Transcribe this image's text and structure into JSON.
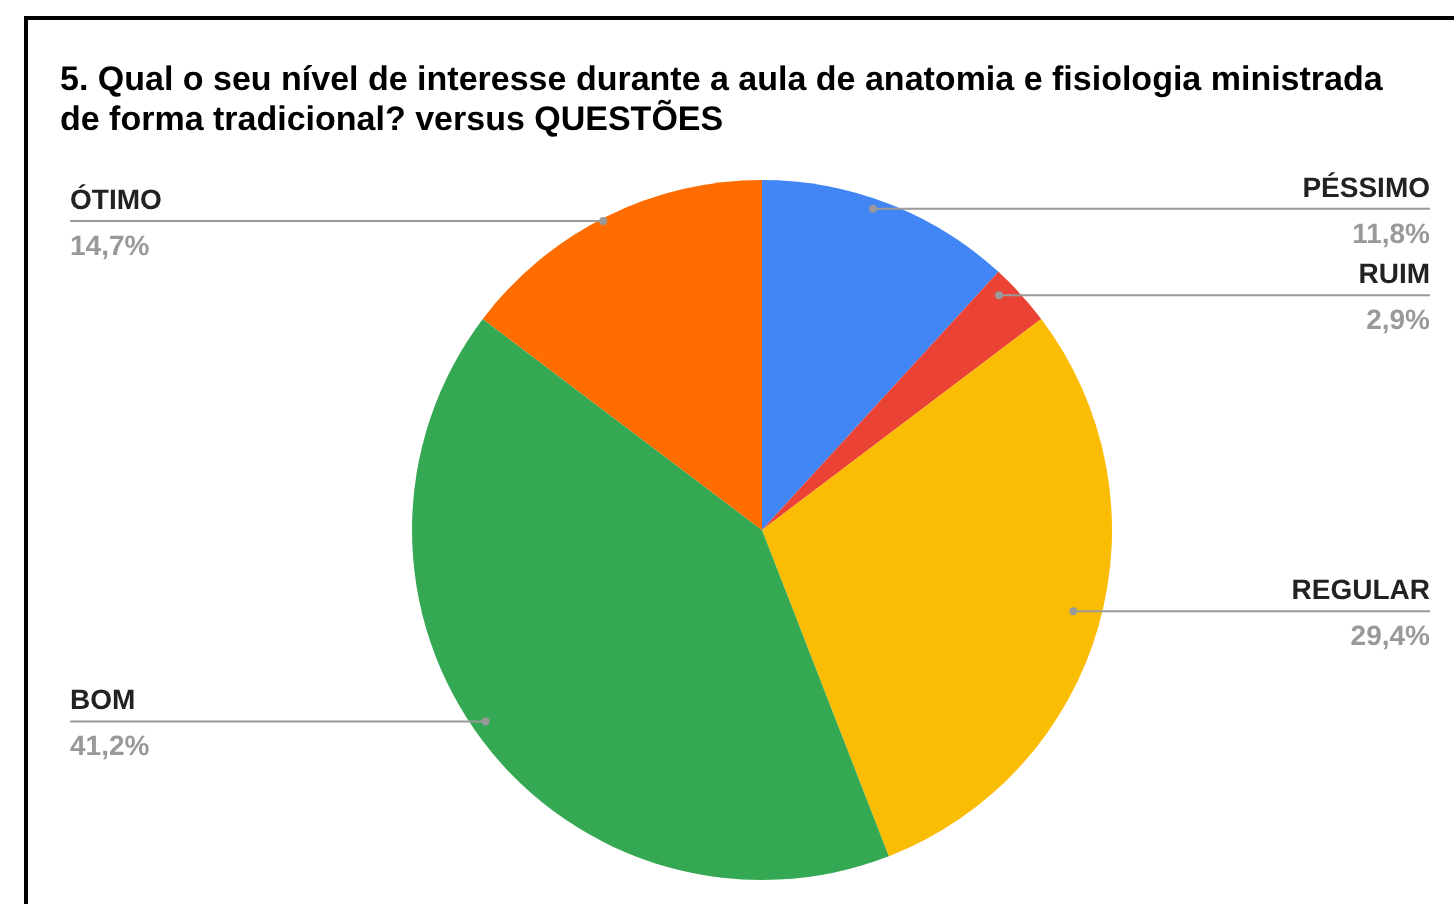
{
  "chart_data": {
    "type": "pie",
    "title": "5. Qual o seu nível de interesse durante a aula de anatomia e fisiologia ministrada de forma tradicional? versus QUESTÕES",
    "categories": [
      "PÉSSIMO",
      "RUIM",
      "REGULAR",
      "BOM",
      "ÓTIMO"
    ],
    "values": [
      11.8,
      2.9,
      29.4,
      41.2,
      14.7
    ],
    "value_labels": [
      "11,8%",
      "2,9%",
      "29,4%",
      "41,2%",
      "14,7%"
    ],
    "colors": [
      "#4285f4",
      "#ea4335",
      "#fbbc04",
      "#34a853",
      "#ff6d01"
    ]
  }
}
